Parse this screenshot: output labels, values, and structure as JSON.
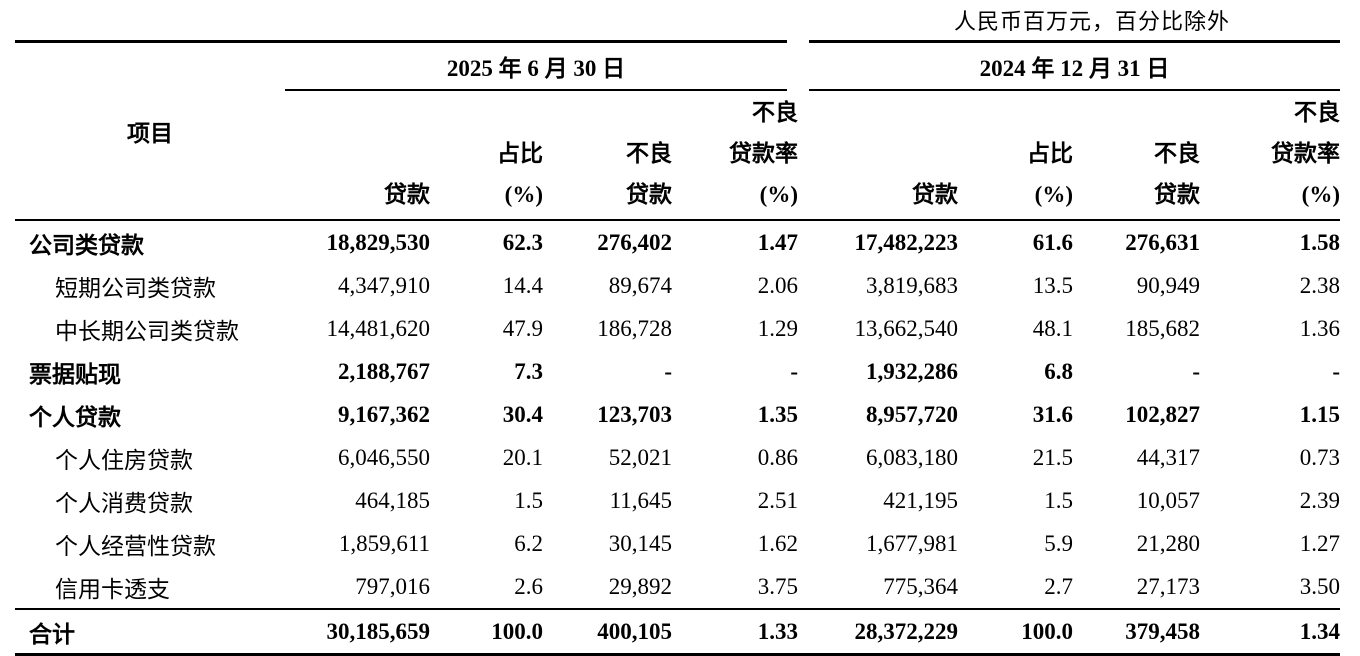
{
  "unit_note": "人民币百万元，百分比除外",
  "header": {
    "item": "项目",
    "periods": [
      "2025 年 6 月 30 日",
      "2024 年 12 月 31 日"
    ],
    "columns": [
      [
        "贷款"
      ],
      [
        "占比",
        "(%)"
      ],
      [
        "不良",
        "贷款"
      ],
      [
        "不良",
        "贷款率",
        "(%)"
      ]
    ]
  },
  "table": {
    "rows": [
      [
        "公司类贷款",
        "18,829,530",
        "62.3",
        "276,402",
        "1.47",
        "17,482,223",
        "61.6",
        "276,631",
        "1.58"
      ],
      [
        "短期公司类贷款",
        "4,347,910",
        "14.4",
        "89,674",
        "2.06",
        "3,819,683",
        "13.5",
        "90,949",
        "2.38"
      ],
      [
        "中长期公司类贷款",
        "14,481,620",
        "47.9",
        "186,728",
        "1.29",
        "13,662,540",
        "48.1",
        "185,682",
        "1.36"
      ],
      [
        "票据贴现",
        "2,188,767",
        "7.3",
        "-",
        "-",
        "1,932,286",
        "6.8",
        "-",
        "-"
      ],
      [
        "个人贷款",
        "9,167,362",
        "30.4",
        "123,703",
        "1.35",
        "8,957,720",
        "31.6",
        "102,827",
        "1.15"
      ],
      [
        "个人住房贷款",
        "6,046,550",
        "20.1",
        "52,021",
        "0.86",
        "6,083,180",
        "21.5",
        "44,317",
        "0.73"
      ],
      [
        "个人消费贷款",
        "464,185",
        "1.5",
        "11,645",
        "2.51",
        "421,195",
        "1.5",
        "10,057",
        "2.39"
      ],
      [
        "个人经营性贷款",
        "1,859,611",
        "6.2",
        "30,145",
        "1.62",
        "1,677,981",
        "5.9",
        "21,280",
        "1.27"
      ],
      [
        "信用卡透支",
        "797,016",
        "2.6",
        "29,892",
        "3.75",
        "775,364",
        "2.7",
        "27,173",
        "3.50"
      ],
      [
        "合计",
        "30,185,659",
        "100.0",
        "400,105",
        "1.33",
        "28,372,229",
        "100.0",
        "379,458",
        "1.34"
      ]
    ]
  }
}
